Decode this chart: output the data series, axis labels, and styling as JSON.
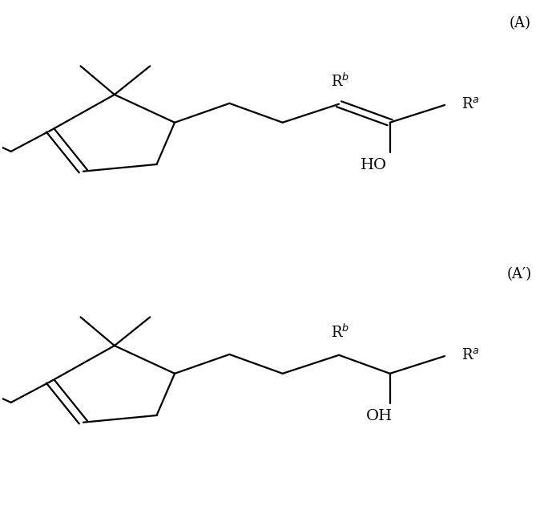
{
  "background_color": "#ffffff",
  "line_color": "#000000",
  "line_width": 1.6,
  "fig_width": 6.89,
  "fig_height": 6.36,
  "label_A": "(A)",
  "label_Aprime": "(A′)",
  "font_size": 13
}
